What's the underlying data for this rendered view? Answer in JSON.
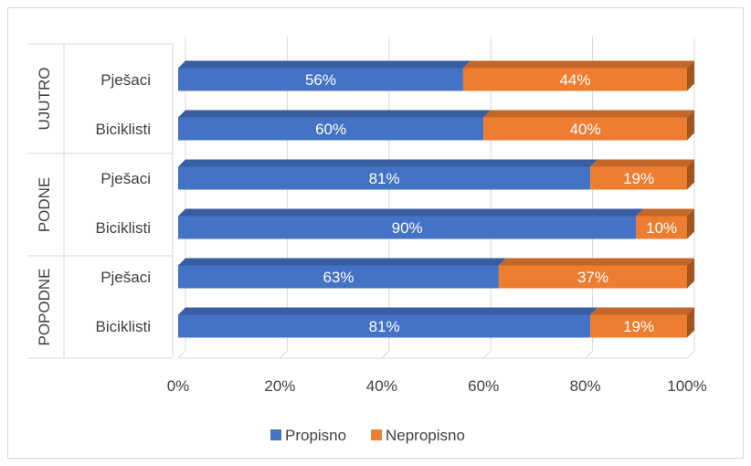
{
  "chart_data": {
    "type": "bar",
    "orientation": "horizontal",
    "stacked": "percent",
    "groups": [
      {
        "label": "UJUTRO",
        "categories": [
          "Pješaci",
          "Biciklisti"
        ]
      },
      {
        "label": "PODNE",
        "categories": [
          "Pješaci",
          "Biciklisti"
        ]
      },
      {
        "label": "POPODNE",
        "categories": [
          "Pješaci",
          "Biciklisti"
        ]
      }
    ],
    "series": [
      {
        "name": "Propisno",
        "color": "#4472c4",
        "values": [
          56,
          60,
          81,
          90,
          63,
          81
        ],
        "labels": [
          "56%",
          "60%",
          "81%",
          "90%",
          "63%",
          "81%"
        ]
      },
      {
        "name": "Nepropisno",
        "color": "#ed7d31",
        "values": [
          44,
          40,
          19,
          10,
          37,
          19
        ],
        "labels": [
          "44%",
          "40%",
          "19%",
          "10%",
          "37%",
          "19%"
        ]
      }
    ],
    "x_ticks": [
      "0%",
      "20%",
      "40%",
      "60%",
      "80%",
      "100%"
    ],
    "xlim": [
      0,
      100
    ],
    "grid": true,
    "legend_position": "bottom"
  }
}
